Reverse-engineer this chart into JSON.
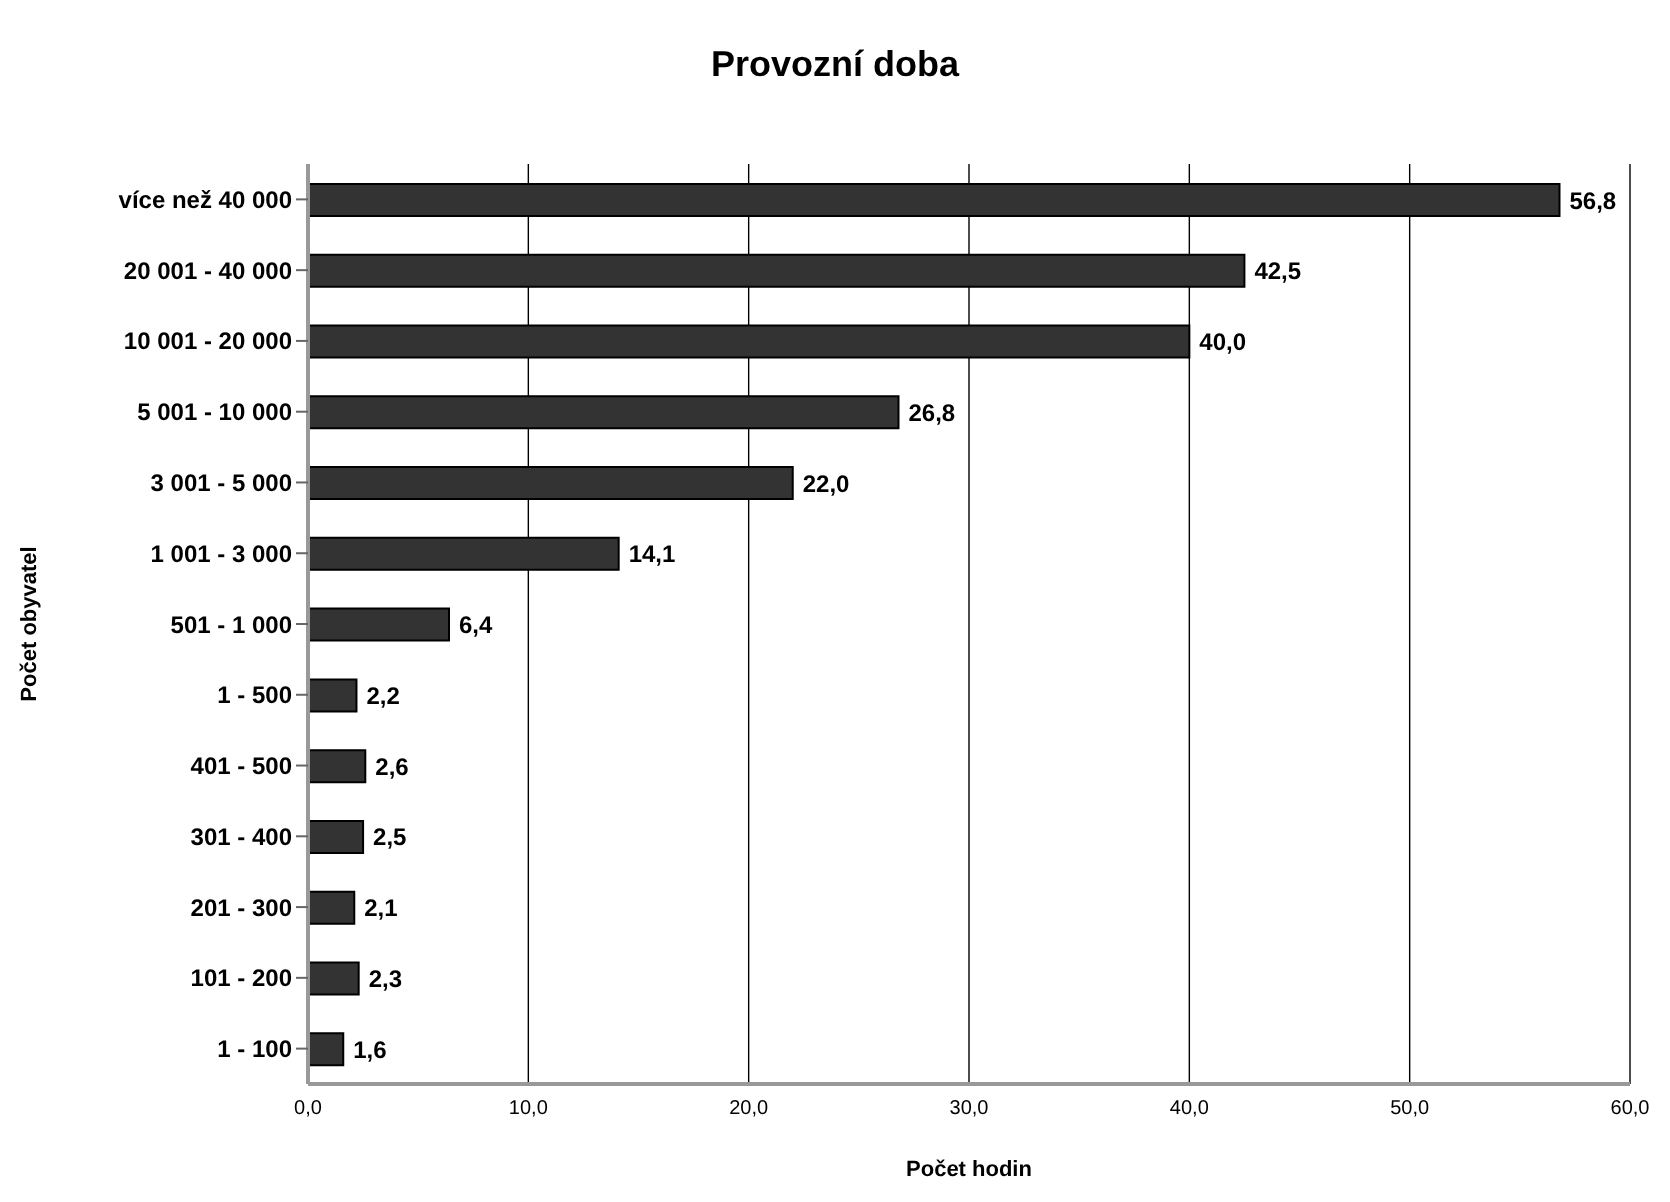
{
  "chart_data": {
    "type": "bar",
    "orientation": "horizontal",
    "title": "Provozní doba",
    "xlabel": "Počet hodin",
    "ylabel": "Počet obyvatel",
    "categories": [
      "více než 40 000",
      "20 001 - 40 000",
      "10 001 - 20 000",
      "5 001 - 10 000",
      "3 001 - 5 000",
      "1 001 - 3 000",
      "501 - 1 000",
      "1 - 500",
      "401 - 500",
      "301 - 400",
      "201 - 300",
      "101 - 200",
      "1 - 100"
    ],
    "values": [
      56.8,
      42.5,
      40.0,
      26.8,
      22.0,
      14.1,
      6.4,
      2.2,
      2.6,
      2.5,
      2.1,
      2.3,
      1.6
    ],
    "value_labels": [
      "56,8",
      "42,5",
      "40,0",
      "26,8",
      "22,0",
      "14,1",
      "6,4",
      "2,2",
      "2,6",
      "2,5",
      "2,1",
      "2,3",
      "1,6"
    ],
    "color": "#333333",
    "xlim": [
      0,
      60
    ],
    "xticks": [
      {
        "value": 0,
        "label": "0,0"
      },
      {
        "value": 10,
        "label": "10,0"
      },
      {
        "value": 20,
        "label": "20,0"
      },
      {
        "value": 30,
        "label": "30,0"
      },
      {
        "value": 40,
        "label": "40,0"
      },
      {
        "value": 50,
        "label": "50,0"
      },
      {
        "value": 60,
        "label": "60,0"
      }
    ],
    "grid": "x"
  }
}
